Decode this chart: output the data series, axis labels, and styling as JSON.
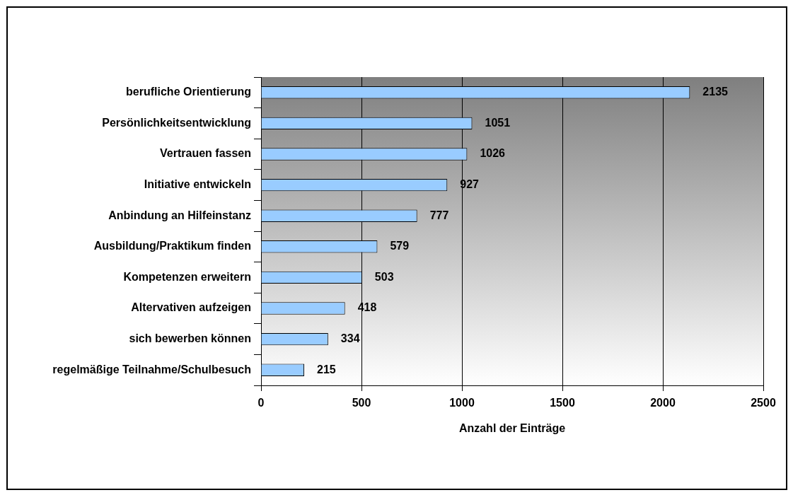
{
  "chart_data": {
    "type": "bar",
    "orientation": "horizontal",
    "xlabel": "Anzahl der Einträge",
    "categories": [
      "berufliche Orientierung",
      "Persönlichkeitsentwicklung",
      "Vertrauen fassen",
      "Initiative entwickeln",
      "Anbindung an Hilfeinstanz",
      "Ausbildung/Praktikum finden",
      "Kompetenzen erweitern",
      "Altervativen aufzeigen",
      "sich bewerben können",
      "regelmäßige Teilnahme/Schulbesuch"
    ],
    "values": [
      2135,
      1051,
      1026,
      927,
      777,
      579,
      503,
      418,
      334,
      215
    ],
    "color": "#99ccff",
    "xlim": [
      0,
      2500
    ],
    "xticks": [
      0,
      500,
      1000,
      1500,
      2000,
      2500
    ],
    "grid": "x",
    "data_labels": true,
    "legend": false
  }
}
